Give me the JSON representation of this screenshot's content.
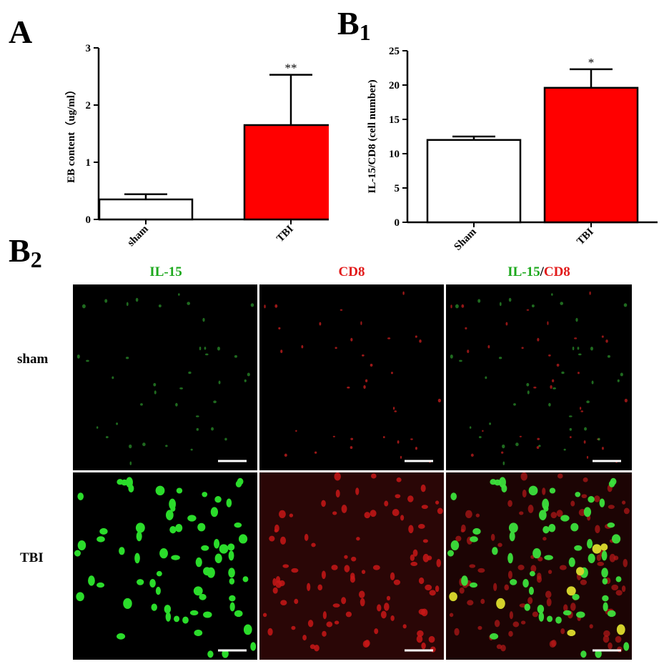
{
  "panels": {
    "A": "A",
    "B1": {
      "letter": "B",
      "sub": "1"
    },
    "B2": {
      "letter": "B",
      "sub": "2"
    }
  },
  "chart_data": [
    {
      "type": "bar",
      "panel": "A",
      "categories": [
        "sham",
        "TBI"
      ],
      "values": [
        0.35,
        1.65
      ],
      "errors": [
        0.09,
        0.88
      ],
      "significance": [
        "",
        "**"
      ],
      "bar_colors": [
        "#ffffff",
        "#ff0000"
      ],
      "ylabel": "EB content（ug/ml）",
      "ylim": [
        0,
        3
      ],
      "yticks": [
        "0",
        "1",
        "2",
        "3"
      ]
    },
    {
      "type": "bar",
      "panel": "B1",
      "categories": [
        "Sham",
        "TBI"
      ],
      "values": [
        12.0,
        19.6
      ],
      "errors": [
        0.5,
        2.7
      ],
      "significance": [
        "",
        "*"
      ],
      "bar_colors": [
        "#ffffff",
        "#ff0000"
      ],
      "ylabel": "IL-15/CD8 (cell number)",
      "ylim": [
        0,
        25
      ],
      "yticks": [
        "0",
        "5",
        "10",
        "15",
        "20",
        "25"
      ]
    }
  ],
  "micrograph": {
    "columns": {
      "il15": "IL-15",
      "cd8": "CD8",
      "merge_part1": "IL-15",
      "merge_sep": "/",
      "merge_part2": "CD8"
    },
    "rows": [
      "sham",
      "TBI"
    ],
    "colors": {
      "green": "#1ca81c",
      "red": "#e21b1b"
    }
  }
}
